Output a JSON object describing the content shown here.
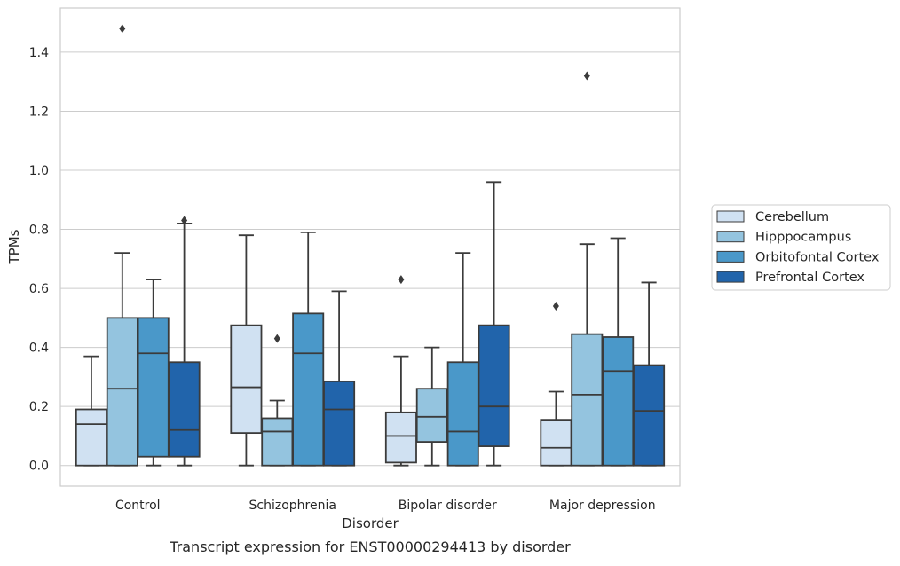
{
  "caption": "Transcript expression for ENST00000294413 by disorder",
  "colors": {
    "background": "#ffffff",
    "grid": "#cccccc",
    "frame": "#cccccc",
    "box_edge": "#3b3b3b"
  },
  "chart_data": {
    "type": "box",
    "title": "",
    "xlabel": "Disorder",
    "ylabel": "TPMs",
    "ylim": [
      -0.07,
      1.55
    ],
    "yticks": [
      0.0,
      0.2,
      0.4,
      0.6,
      0.8,
      1.0,
      1.2,
      1.4
    ],
    "ytick_labels": [
      "0.0",
      "0.2",
      "0.4",
      "0.6",
      "0.8",
      "1.0",
      "1.2",
      "1.4"
    ],
    "grid": "horizontal",
    "legend_position": "right",
    "categories": [
      "Control",
      "Schizophrenia",
      "Bipolar disorder",
      "Major depression"
    ],
    "series": [
      {
        "name": "Cerebellum",
        "color": "#d0e1f2",
        "boxes": [
          {
            "whislo": 0.0,
            "q1": 0.0,
            "med": 0.14,
            "q3": 0.19,
            "whishi": 0.37,
            "fliers": []
          },
          {
            "whislo": 0.0,
            "q1": 0.11,
            "med": 0.265,
            "q3": 0.475,
            "whishi": 0.78,
            "fliers": []
          },
          {
            "whislo": 0.0,
            "q1": 0.01,
            "med": 0.1,
            "q3": 0.18,
            "whishi": 0.37,
            "fliers": [
              0.63
            ]
          },
          {
            "whislo": 0.0,
            "q1": 0.0,
            "med": 0.06,
            "q3": 0.155,
            "whishi": 0.25,
            "fliers": [
              0.54
            ]
          }
        ]
      },
      {
        "name": "Hipppocampus",
        "color": "#94c4df",
        "boxes": [
          {
            "whislo": 0.0,
            "q1": 0.0,
            "med": 0.26,
            "q3": 0.5,
            "whishi": 0.72,
            "fliers": [
              1.48
            ]
          },
          {
            "whislo": 0.0,
            "q1": 0.0,
            "med": 0.115,
            "q3": 0.16,
            "whishi": 0.22,
            "fliers": [
              0.43
            ]
          },
          {
            "whislo": 0.0,
            "q1": 0.08,
            "med": 0.165,
            "q3": 0.26,
            "whishi": 0.4,
            "fliers": []
          },
          {
            "whislo": 0.0,
            "q1": 0.0,
            "med": 0.24,
            "q3": 0.445,
            "whishi": 0.75,
            "fliers": [
              1.32
            ]
          }
        ]
      },
      {
        "name": "Orbitofontal Cortex",
        "color": "#4a98c9",
        "boxes": [
          {
            "whislo": 0.0,
            "q1": 0.03,
            "med": 0.38,
            "q3": 0.5,
            "whishi": 0.63,
            "fliers": []
          },
          {
            "whislo": 0.0,
            "q1": 0.0,
            "med": 0.38,
            "q3": 0.515,
            "whishi": 0.79,
            "fliers": []
          },
          {
            "whislo": 0.0,
            "q1": 0.0,
            "med": 0.115,
            "q3": 0.35,
            "whishi": 0.72,
            "fliers": []
          },
          {
            "whislo": 0.0,
            "q1": 0.0,
            "med": 0.32,
            "q3": 0.435,
            "whishi": 0.77,
            "fliers": []
          }
        ]
      },
      {
        "name": "Prefrontal Cortex",
        "color": "#2164ab",
        "boxes": [
          {
            "whislo": 0.0,
            "q1": 0.03,
            "med": 0.12,
            "q3": 0.35,
            "whishi": 0.82,
            "fliers": [
              0.83
            ]
          },
          {
            "whislo": 0.0,
            "q1": 0.0,
            "med": 0.19,
            "q3": 0.285,
            "whishi": 0.59,
            "fliers": []
          },
          {
            "whislo": 0.0,
            "q1": 0.065,
            "med": 0.2,
            "q3": 0.475,
            "whishi": 0.96,
            "fliers": []
          },
          {
            "whislo": 0.0,
            "q1": 0.0,
            "med": 0.185,
            "q3": 0.34,
            "whishi": 0.62,
            "fliers": []
          }
        ]
      }
    ]
  }
}
